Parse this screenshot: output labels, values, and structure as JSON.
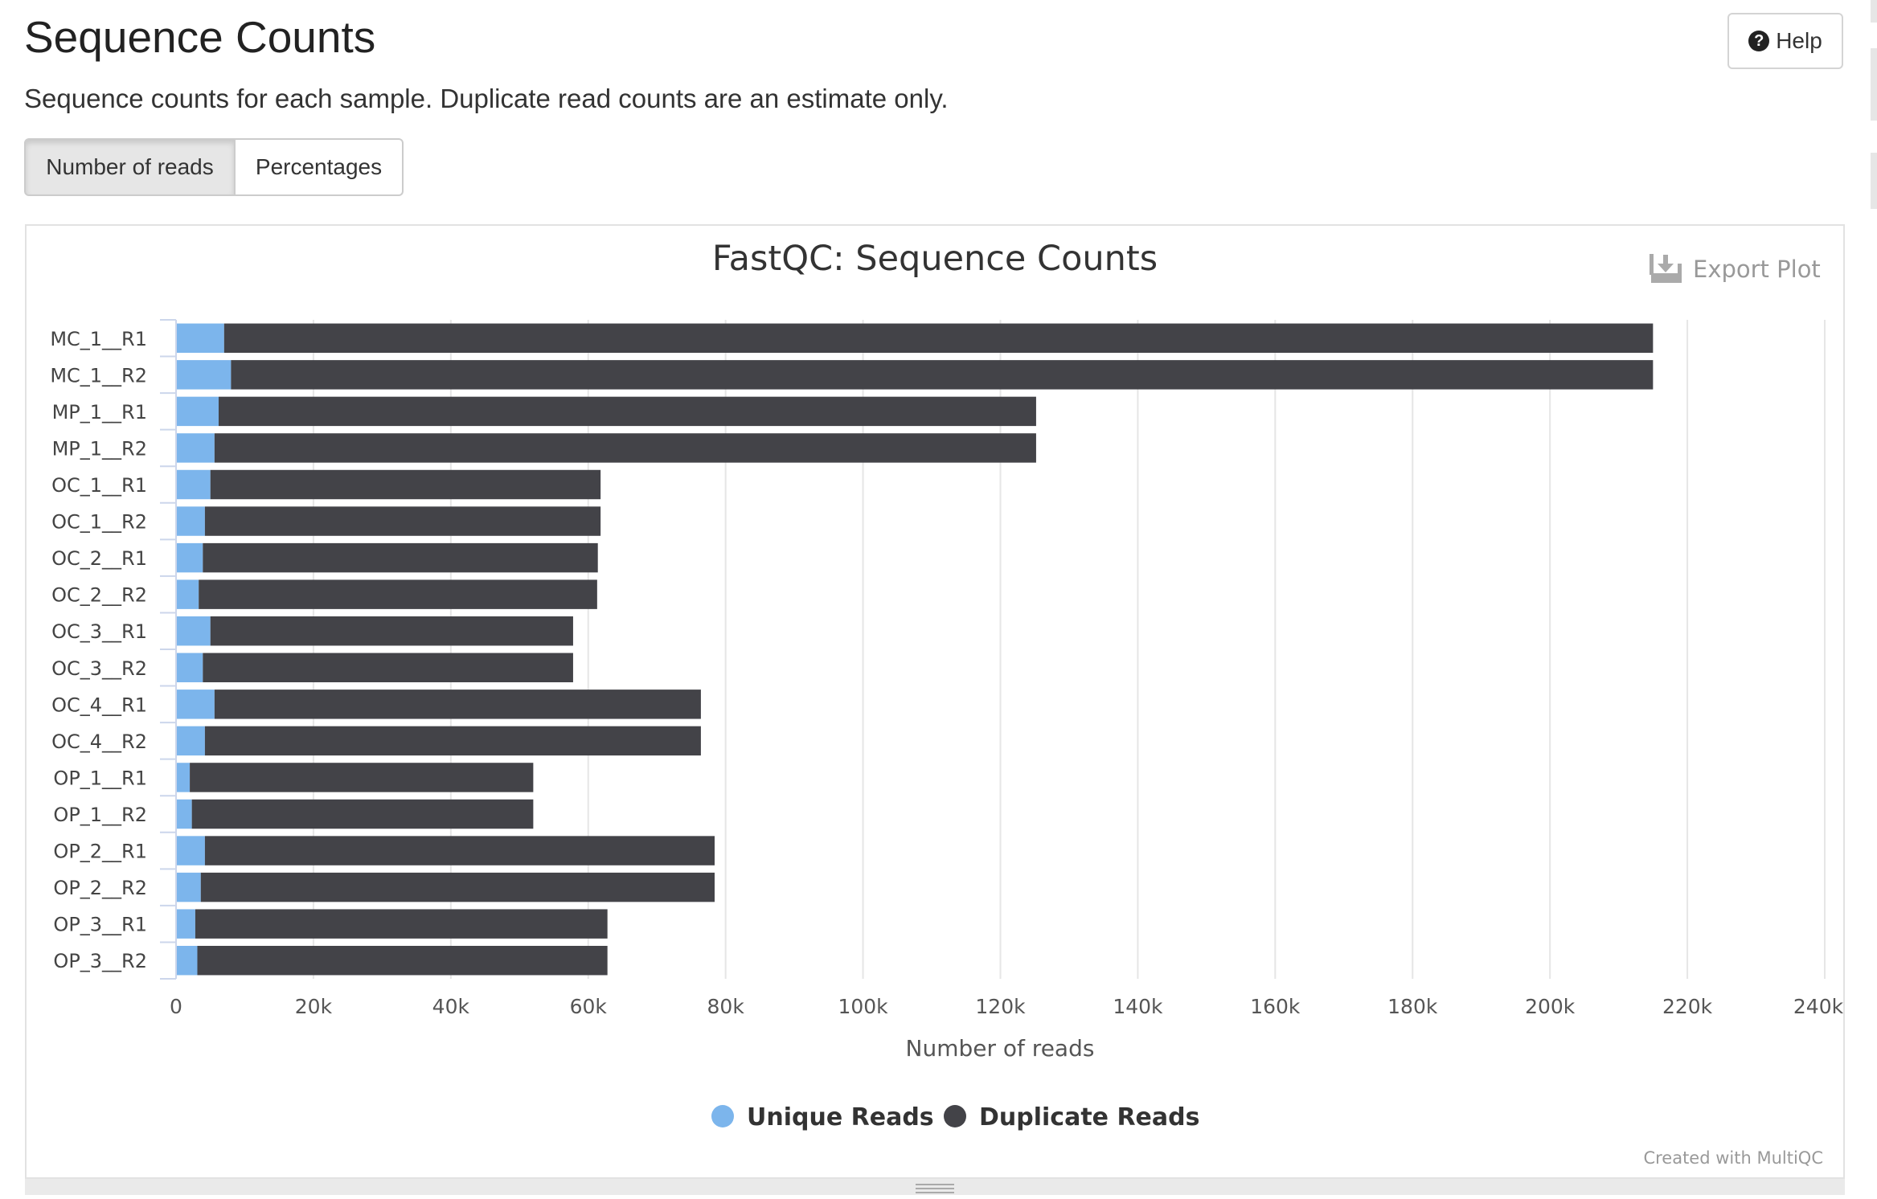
{
  "page": {
    "title": "Sequence Counts",
    "help_label": "Help",
    "description": "Sequence counts for each sample. Duplicate read counts are an estimate only."
  },
  "toggles": [
    {
      "label": "Number of reads",
      "active": true
    },
    {
      "label": "Percentages",
      "active": false
    }
  ],
  "plot": {
    "export_label": "Export Plot",
    "credit": "Created with MultiQC",
    "icons": {
      "help": "question-circle-icon",
      "export": "download-icon",
      "resize": "resize-handle-icon"
    }
  },
  "chart_data": {
    "type": "bar",
    "orientation": "horizontal",
    "stacked": true,
    "title": "FastQC: Sequence Counts",
    "xlabel": "Number of reads",
    "ylabel": "",
    "xlim": [
      0,
      240000
    ],
    "x_ticks": [
      "0",
      "20k",
      "40k",
      "60k",
      "80k",
      "100k",
      "120k",
      "140k",
      "160k",
      "180k",
      "200k",
      "220k",
      "240k"
    ],
    "grid": true,
    "legend": "bottom-center",
    "categories": [
      "MC_1__R1",
      "MC_1__R2",
      "MP_1__R1",
      "MP_1__R2",
      "OC_1__R1",
      "OC_1__R2",
      "OC_2__R1",
      "OC_2__R2",
      "OC_3__R1",
      "OC_3__R2",
      "OC_4__R1",
      "OC_4__R2",
      "OP_1__R1",
      "OP_1__R2",
      "OP_2__R1",
      "OP_2__R2",
      "OP_3__R1",
      "OP_3__R2"
    ],
    "series": [
      {
        "name": "Unique Reads",
        "color": "#7cb5ec",
        "values": [
          7000,
          8000,
          6200,
          5600,
          5000,
          4200,
          3900,
          3300,
          5000,
          3900,
          5600,
          4200,
          2000,
          2300,
          4200,
          3600,
          2800,
          3100
        ]
      },
      {
        "name": "Duplicate Reads",
        "color": "#434348",
        "values": [
          208000,
          207000,
          119000,
          119600,
          56800,
          57600,
          57500,
          58000,
          52800,
          53900,
          70800,
          72200,
          50000,
          49700,
          74200,
          74800,
          60000,
          59700
        ]
      }
    ]
  }
}
